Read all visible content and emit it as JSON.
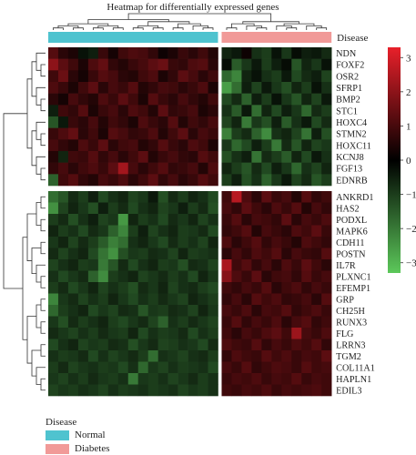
{
  "chart_data": {
    "type": "heatmap",
    "title": "Heatmap for differentially expressed genes",
    "annotation_label": "Disease",
    "groups": [
      {
        "name": "Normal",
        "color": "#4FC3CF",
        "n": 17
      },
      {
        "name": "Diabetes",
        "color": "#F19A98",
        "n": 11
      }
    ],
    "rows": [
      "NDN",
      "FOXF2",
      "OSR2",
      "SFRP1",
      "BMP2",
      "STC1",
      "HOXC4",
      "STMN2",
      "HOXC11",
      "KCNJ8",
      "FGF13",
      "EDNRB",
      "ANKRD1",
      "HAS2",
      "PODXL",
      "MAPK6",
      "CDH11",
      "POSTN",
      "IL7R",
      "PLXNC1",
      "EFEMP1",
      "GRP",
      "CH25H",
      "RUNX3",
      "FLG",
      "LRRN3",
      "TGM2",
      "COL11A1",
      "HAPLN1",
      "EDIL3"
    ],
    "row_split_after": 12,
    "colorbar": {
      "ticks": [
        3,
        2,
        1,
        0,
        -1,
        -2,
        -3
      ],
      "range": [
        -3.3,
        3.3
      ],
      "high_color": "#E8202A",
      "mid_color": "#000000",
      "low_color": "#5CC85A"
    },
    "values": [
      [
        1.2,
        0.6,
        0.4,
        -0.3,
        -0.5,
        0.8,
        0.3,
        0.9,
        1.1,
        1.0,
        0.7,
        0.2,
        0.4,
        0.8,
        0.6,
        0.9,
        0.5,
        -0.6,
        -0.4,
        0.2,
        -0.8,
        -1.0,
        -0.3,
        -0.9,
        -0.2,
        -0.5,
        -0.4,
        -0.7
      ],
      [
        2.0,
        1.3,
        0.9,
        0.4,
        1.1,
        1.4,
        0.7,
        0.5,
        0.8,
        1.0,
        1.3,
        1.5,
        0.8,
        0.7,
        1.1,
        1.2,
        0.6,
        -0.2,
        -1.5,
        -0.9,
        -0.4,
        -1.0,
        -0.5,
        -0.2,
        -1.4,
        -0.6,
        -0.9,
        -0.3
      ],
      [
        0.9,
        1.5,
        0.6,
        0.3,
        0.8,
        1.2,
        1.0,
        0.6,
        0.5,
        0.9,
        1.1,
        0.4,
        0.7,
        1.3,
        1.0,
        0.6,
        0.9,
        -1.7,
        -2.2,
        -0.6,
        -0.3,
        -0.8,
        -1.0,
        -0.4,
        -1.2,
        -0.7,
        -0.5,
        -1.1
      ],
      [
        1.1,
        0.8,
        0.4,
        0.9,
        1.3,
        0.6,
        1.0,
        0.8,
        1.2,
        0.5,
        0.7,
        1.0,
        0.9,
        0.6,
        0.8,
        1.1,
        0.4,
        -2.6,
        -1.8,
        -0.5,
        -1.1,
        -0.4,
        -0.9,
        -1.3,
        -0.6,
        -1.0,
        -0.3,
        -0.8
      ],
      [
        0.6,
        0.3,
        1.0,
        0.7,
        0.5,
        1.1,
        0.8,
        1.3,
        0.9,
        0.4,
        1.2,
        0.8,
        0.6,
        1.0,
        0.7,
        0.5,
        0.9,
        -1.2,
        -0.7,
        -1.6,
        -0.5,
        -1.0,
        -0.3,
        -0.9,
        -1.4,
        -0.6,
        -1.1,
        -0.4
      ],
      [
        -0.5,
        0.9,
        0.7,
        1.2,
        0.4,
        0.8,
        1.0,
        0.6,
        1.1,
        0.9,
        0.5,
        1.3,
        0.7,
        0.8,
        1.0,
        0.4,
        0.6,
        -0.8,
        -1.5,
        -0.4,
        -1.8,
        -0.6,
        -1.2,
        -0.5,
        -0.9,
        -1.7,
        -0.7,
        -1.0
      ],
      [
        -1.4,
        -0.4,
        0.8,
        0.6,
        1.0,
        0.5,
        0.9,
        0.7,
        0.4,
        1.1,
        0.8,
        0.6,
        1.2,
        0.5,
        0.9,
        0.7,
        1.0,
        -1.1,
        -0.6,
        -2.0,
        -0.9,
        -1.3,
        -0.5,
        -1.5,
        -0.8,
        -0.4,
        -1.2,
        -0.7
      ],
      [
        0.8,
        1.1,
        1.4,
        0.6,
        0.9,
        0.4,
        1.2,
        1.0,
        0.7,
        0.8,
        1.1,
        0.5,
        0.9,
        1.3,
        0.6,
        1.0,
        0.8,
        -2.1,
        -1.0,
        -0.7,
        -1.6,
        -2.3,
        -0.8,
        -0.6,
        -1.1,
        -1.9,
        -0.5,
        -1.3
      ],
      [
        1.0,
        0.7,
        0.5,
        1.1,
        0.8,
        1.3,
        0.6,
        0.9,
        1.0,
        0.5,
        0.7,
        1.2,
        0.8,
        0.6,
        1.1,
        0.9,
        0.4,
        -0.9,
        -1.7,
        -1.2,
        -0.5,
        -1.0,
        -2.0,
        -0.7,
        -1.4,
        -0.6,
        -1.1,
        -0.9
      ],
      [
        0.5,
        -0.6,
        0.9,
        0.8,
        1.2,
        0.7,
        1.0,
        0.6,
        0.9,
        1.3,
        0.5,
        0.8,
        1.0,
        0.7,
        0.6,
        1.2,
        0.9,
        -1.3,
        -0.8,
        -0.5,
        -1.9,
        -0.7,
        -1.0,
        -1.5,
        -0.6,
        -1.2,
        -0.4,
        -0.8
      ],
      [
        0.7,
        1.0,
        0.6,
        0.9,
        1.1,
        0.8,
        1.3,
        2.3,
        1.0,
        0.6,
        0.9,
        1.2,
        0.7,
        0.8,
        1.0,
        0.5,
        1.1,
        -0.6,
        -1.0,
        -1.4,
        -0.7,
        -1.2,
        -0.5,
        -0.9,
        -1.7,
        -0.8,
        -1.1,
        -0.6
      ],
      [
        -1.6,
        0.9,
        1.2,
        0.7,
        0.5,
        1.0,
        0.8,
        1.1,
        0.6,
        0.9,
        1.3,
        0.7,
        1.0,
        0.6,
        0.8,
        1.2,
        0.9,
        -1.0,
        -0.5,
        -1.3,
        -0.8,
        -1.6,
        -0.9,
        -0.4,
        -1.1,
        -0.7,
        -1.4,
        -1.0
      ],
      [
        -1.8,
        -1.4,
        -0.7,
        -1.0,
        -0.5,
        -1.2,
        -0.8,
        -0.6,
        -1.1,
        -0.9,
        -0.4,
        -1.3,
        -0.7,
        -1.0,
        -0.6,
        -0.8,
        -1.2,
        0.9,
        2.6,
        1.1,
        0.6,
        1.3,
        0.8,
        1.0,
        0.5,
        1.2,
        0.7,
        0.9
      ],
      [
        -2.4,
        -1.1,
        -0.6,
        -0.9,
        -1.3,
        -0.5,
        -1.0,
        -0.7,
        -1.2,
        -0.8,
        -0.6,
        -1.1,
        -0.9,
        -0.5,
        -1.0,
        -0.7,
        -1.3,
        1.0,
        0.7,
        1.3,
        0.9,
        0.6,
        1.1,
        0.8,
        1.2,
        0.5,
        1.0,
        0.7
      ],
      [
        -1.0,
        -0.7,
        -1.3,
        -0.8,
        -0.5,
        -1.1,
        -0.9,
        -2.5,
        -0.6,
        -1.0,
        -0.8,
        -1.2,
        -0.7,
        -0.9,
        -0.6,
        -1.1,
        -0.8,
        0.8,
        1.2,
        0.6,
        1.0,
        0.9,
        0.7,
        1.3,
        0.6,
        1.0,
        0.8,
        1.1
      ],
      [
        -0.6,
        -1.0,
        -0.8,
        -1.2,
        -0.7,
        -0.9,
        -1.6,
        -2.2,
        -1.0,
        -0.5,
        -1.1,
        -0.8,
        -0.6,
        -1.0,
        -0.9,
        -0.7,
        -1.2,
        0.7,
        0.9,
        1.2,
        0.5,
        1.0,
        0.8,
        0.6,
        1.1,
        0.9,
        1.3,
        0.8
      ],
      [
        -0.9,
        -0.6,
        -1.1,
        -0.7,
        -1.0,
        -1.5,
        -2.1,
        -1.8,
        -0.8,
        -0.6,
        -0.9,
        -1.2,
        -0.7,
        -1.0,
        -0.8,
        -1.1,
        -0.6,
        1.1,
        0.6,
        0.9,
        1.2,
        0.7,
        1.0,
        0.8,
        0.5,
        1.1,
        0.9,
        0.7
      ],
      [
        -0.7,
        -1.1,
        -0.8,
        -0.6,
        -1.2,
        -1.9,
        -2.4,
        -1.3,
        -0.9,
        -1.0,
        -0.7,
        -0.8,
        -1.1,
        -0.6,
        -1.0,
        -0.9,
        -0.8,
        0.6,
        1.0,
        0.7,
        1.1,
        0.9,
        1.2,
        0.6,
        1.0,
        0.8,
        0.7,
        1.2
      ],
      [
        -1.1,
        -0.8,
        -0.6,
        -1.0,
        -0.9,
        -2.0,
        -1.4,
        -0.7,
        -1.2,
        -0.8,
        -0.6,
        -1.0,
        -0.9,
        -1.3,
        -0.7,
        -0.8,
        -1.1,
        2.4,
        0.9,
        1.2,
        0.7,
        1.0,
        0.6,
        1.1,
        0.8,
        1.3,
        0.9,
        0.6
      ],
      [
        -0.8,
        -1.2,
        -0.9,
        -0.7,
        -1.6,
        -2.3,
        -1.0,
        -0.8,
        -0.6,
        -1.1,
        -0.9,
        -0.7,
        -1.0,
        -0.8,
        -1.2,
        -0.6,
        -0.9,
        1.9,
        1.1,
        0.8,
        1.3,
        0.6,
        0.9,
        1.0,
        0.7,
        1.2,
        0.8,
        1.0
      ],
      [
        -1.0,
        -0.7,
        -1.2,
        -0.9,
        -0.6,
        -1.1,
        -0.8,
        -1.0,
        -1.3,
        -0.7,
        -0.9,
        -0.6,
        -1.1,
        -0.8,
        -0.7,
        -1.0,
        -1.2,
        0.9,
        0.7,
        1.0,
        0.8,
        1.2,
        0.6,
        0.9,
        1.1,
        0.7,
        1.0,
        0.8
      ],
      [
        -2.2,
        -0.9,
        -0.7,
        -1.1,
        -0.8,
        -1.0,
        -0.6,
        -0.9,
        -1.2,
        -0.8,
        -1.0,
        -0.7,
        -0.9,
        -1.1,
        -0.6,
        -0.8,
        -1.0,
        0.7,
        1.0,
        0.6,
        1.2,
        0.9,
        1.1,
        0.7,
        0.8,
        1.0,
        0.6,
        1.2
      ],
      [
        -1.7,
        -1.0,
        -0.8,
        -0.6,
        -1.2,
        -0.9,
        -1.1,
        -0.7,
        -0.8,
        -1.4,
        -0.9,
        -1.0,
        -0.7,
        -0.8,
        -1.1,
        -0.6,
        -0.9,
        1.0,
        0.8,
        1.1,
        0.6,
        1.0,
        0.9,
        1.2,
        0.7,
        0.9,
        1.1,
        0.8
      ],
      [
        -0.9,
        -1.3,
        -0.7,
        -1.0,
        -0.8,
        -0.6,
        -1.0,
        -1.2,
        -0.9,
        -0.7,
        -1.1,
        -1.6,
        -0.8,
        -1.0,
        -0.7,
        -0.9,
        -1.1,
        0.8,
        1.2,
        0.7,
        1.0,
        0.8,
        1.1,
        0.6,
        1.0,
        1.2,
        0.7,
        0.9
      ],
      [
        -0.7,
        -0.9,
        -1.1,
        -0.8,
        -1.0,
        -0.7,
        -0.9,
        -1.0,
        -0.6,
        -1.2,
        -0.8,
        -1.0,
        -0.9,
        -0.7,
        -1.2,
        -0.8,
        -1.0,
        0.9,
        0.6,
        1.0,
        0.8,
        1.1,
        1.3,
        0.9,
        2.2,
        1.0,
        0.8,
        1.1
      ],
      [
        -1.2,
        -0.8,
        -0.6,
        -1.1,
        -0.9,
        -1.0,
        -0.7,
        -0.8,
        -1.3,
        -0.9,
        -0.7,
        -1.1,
        -1.0,
        -0.8,
        -0.9,
        -1.2,
        -0.7,
        1.1,
        0.9,
        0.8,
        1.2,
        0.7,
        1.0,
        0.8,
        1.1,
        0.9,
        1.2,
        0.7
      ],
      [
        -0.8,
        -1.0,
        -0.9,
        -0.7,
        -1.2,
        -0.8,
        -1.1,
        -0.9,
        -0.7,
        -1.0,
        -1.8,
        -0.8,
        -0.9,
        -1.1,
        -0.8,
        -0.7,
        -1.0,
        0.7,
        1.1,
        0.9,
        0.8,
        1.2,
        0.9,
        1.1,
        0.8,
        1.0,
        0.9,
        1.3
      ],
      [
        -1.0,
        -0.7,
        -1.1,
        -0.9,
        -0.8,
        -1.0,
        -0.9,
        -1.2,
        -0.8,
        -1.7,
        -0.9,
        -1.1,
        -0.8,
        -1.0,
        -0.9,
        -0.8,
        -1.2,
        1.0,
        0.8,
        1.2,
        0.7,
        0.9,
        1.1,
        1.0,
        0.8,
        1.2,
        0.9,
        1.0
      ],
      [
        -0.9,
        -1.1,
        -0.8,
        -1.0,
        -0.7,
        -0.9,
        -1.0,
        -0.8,
        -2.0,
        -0.9,
        -1.0,
        -0.8,
        -1.1,
        -0.9,
        -0.7,
        -1.0,
        -0.8,
        0.8,
        1.0,
        0.9,
        1.1,
        0.8,
        1.0,
        0.9,
        1.2,
        0.8,
        1.0,
        0.9
      ],
      [
        -1.1,
        -0.9,
        -1.0,
        -0.8,
        -0.9,
        -1.1,
        -0.8,
        -1.0,
        -0.9,
        -0.8,
        -1.0,
        -0.9,
        -0.8,
        -1.1,
        -0.9,
        -1.0,
        -0.8,
        0.9,
        0.8,
        1.0,
        0.9,
        1.1,
        0.8,
        1.0,
        0.9,
        1.0,
        1.1,
        0.9
      ]
    ]
  }
}
